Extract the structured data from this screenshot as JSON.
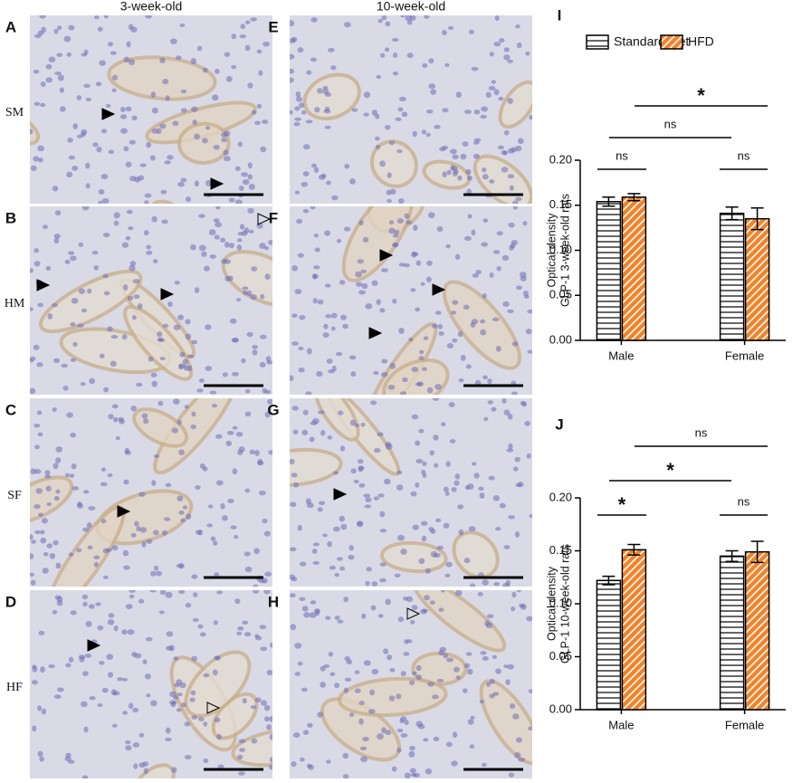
{
  "column_headers": [
    "3-week-old",
    "10-week-old"
  ],
  "row_labels": [
    "SM",
    "HM",
    "SF",
    "HF"
  ],
  "panel_letters": [
    "A",
    "B",
    "C",
    "D",
    "E",
    "F",
    "G",
    "H"
  ],
  "chart_data": [
    {
      "type": "bar",
      "panel_label": "I",
      "y_label": [
        "Optical density",
        "GLP-1 3-week-old rats"
      ],
      "categories": [
        "Male",
        "Female"
      ],
      "series": [
        {
          "name": "Standard diet",
          "color": "#000000",
          "values": [
            0.154,
            0.141
          ],
          "errors": [
            0.005,
            0.007
          ]
        },
        {
          "name": "HFD",
          "color": "#f0832a",
          "values": [
            0.159,
            0.135
          ],
          "errors": [
            0.004,
            0.012
          ]
        }
      ],
      "ylim": [
        0,
        0.2
      ],
      "yticks": [
        {
          "value": 0,
          "label": "0.00"
        },
        0.05,
        {
          "value": 0.1,
          "label": "0.10"
        },
        0.15,
        {
          "value": 0.2,
          "label": "0.20"
        }
      ],
      "legend": "top",
      "annotations": [
        "ns",
        "ns",
        "ns",
        "*"
      ]
    },
    {
      "type": "bar",
      "panel_label": "J",
      "y_label": [
        "Optical density",
        "GLP-1 10-week-old rats"
      ],
      "categories": [
        "Male",
        "Female"
      ],
      "series": [
        {
          "name": "Standard diet",
          "color": "#000000",
          "values": [
            0.122,
            0.145
          ],
          "errors": [
            0.004,
            0.005
          ]
        },
        {
          "name": "HFD",
          "color": "#f0832a",
          "values": [
            0.151,
            0.149
          ],
          "errors": [
            0.005,
            0.01
          ]
        }
      ],
      "ylim": [
        0,
        0.2
      ],
      "yticks": [
        {
          "value": 0,
          "label": "0.00"
        },
        0.05,
        {
          "value": 0.1,
          "label": "0.10"
        },
        0.15,
        {
          "value": 0.2,
          "label": "0.20"
        }
      ],
      "annotations": [
        "*",
        "ns",
        "*",
        "ns"
      ]
    }
  ]
}
